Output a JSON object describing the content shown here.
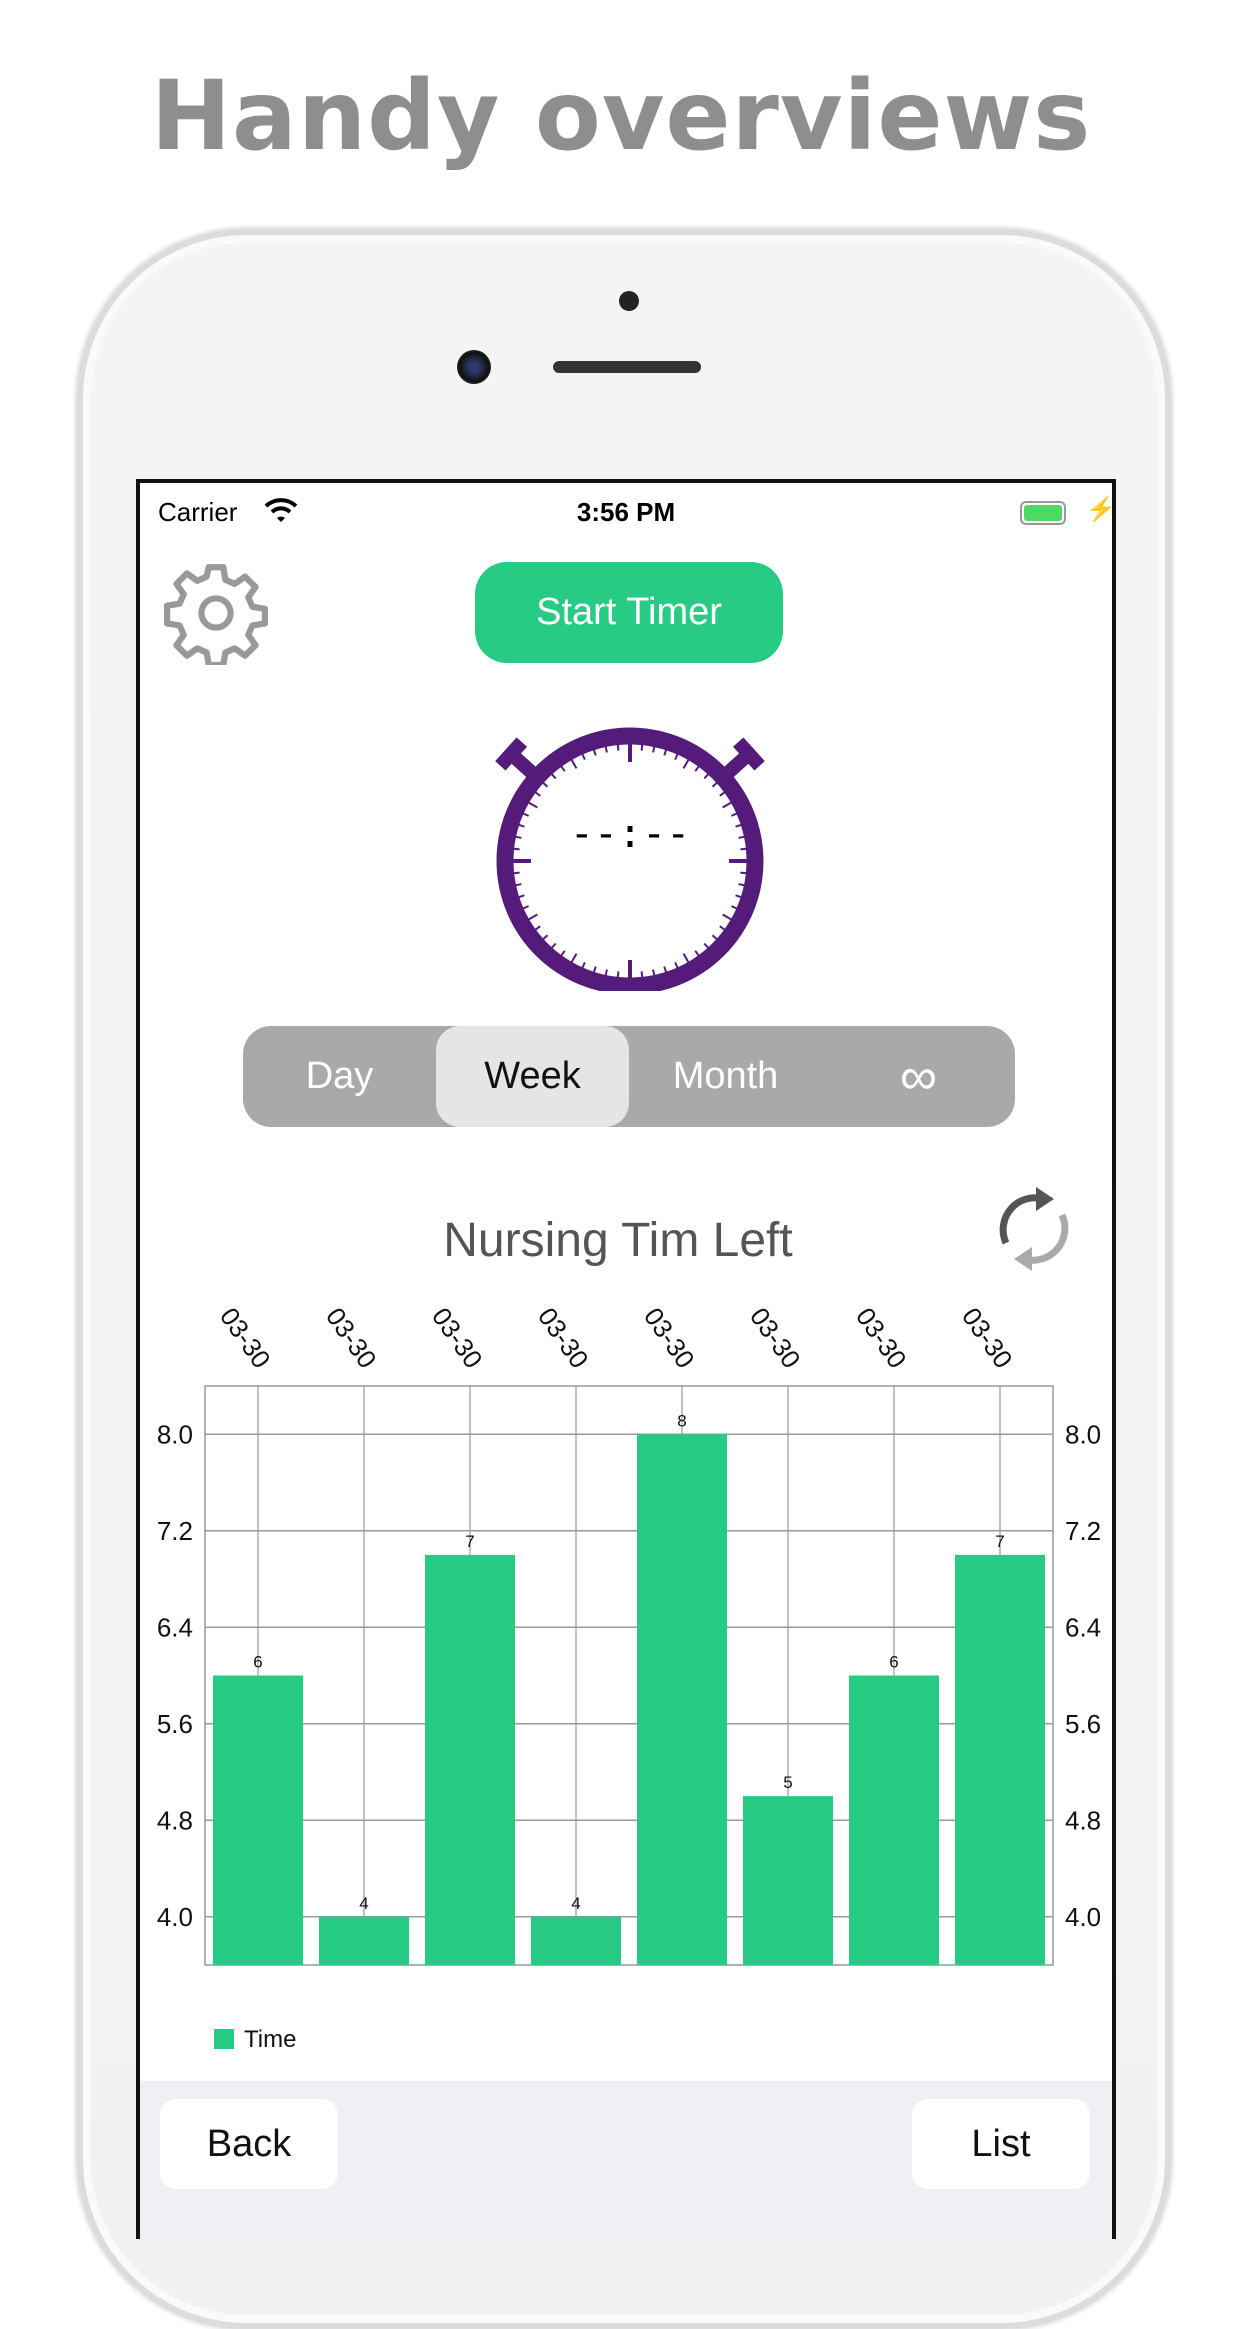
{
  "headline": "Handy overviews",
  "status_bar": {
    "carrier": "Carrier",
    "time": "3:56 PM",
    "battery_level": 1.0
  },
  "toolbar": {
    "start_label": "Start Timer",
    "settings_icon": "gear-icon"
  },
  "timer": {
    "display": "--:--",
    "color": "#541b7b"
  },
  "segments": {
    "items": [
      "Day",
      "Week",
      "Month",
      "∞"
    ],
    "selected": "Week"
  },
  "chart_title": "Nursing Tim Left",
  "refresh_icon": "refresh-icon",
  "colors": {
    "accent": "#28cb83",
    "segment_bg": "#a9a9a9"
  },
  "chart_data": {
    "type": "bar",
    "categories": [
      "03-30",
      "03-30",
      "03-30",
      "03-30",
      "03-30",
      "03-30",
      "03-30",
      "03-30"
    ],
    "series": [
      {
        "name": "Time",
        "values": [
          6,
          4,
          7,
          4,
          8,
          5,
          6,
          7
        ]
      }
    ],
    "yticks": [
      "4.0",
      "4.8",
      "5.6",
      "6.4",
      "7.2",
      "8.0"
    ],
    "ylim": [
      3.6,
      8.4
    ],
    "grid": true,
    "legend": "bottom-left",
    "color": "#28cb83"
  },
  "bottom": {
    "back": "Back",
    "list": "List"
  }
}
